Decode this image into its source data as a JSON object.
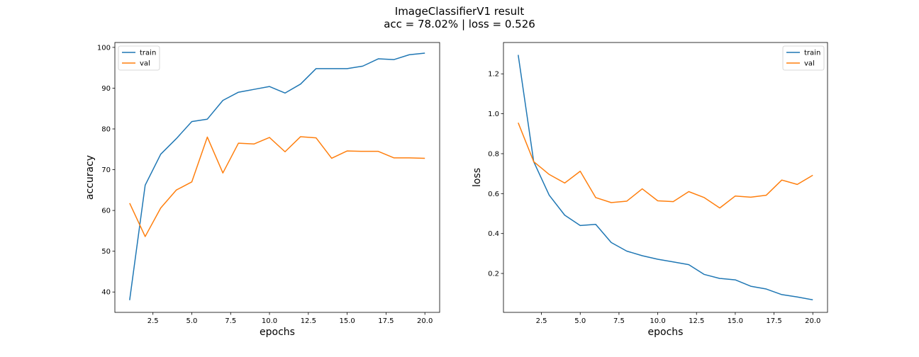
{
  "figure": {
    "title_line1": "ImageClassifierV1 result",
    "title_line2": "acc = 78.02% | loss = 0.526"
  },
  "colors": {
    "train": "#1f77b4",
    "val": "#ff7f0e",
    "axes": "#000000",
    "legend_border": "#cccccc"
  },
  "chart_data": [
    {
      "type": "line",
      "xlabel": "epochs",
      "ylabel": "accuracy",
      "xlim": [
        0.05,
        20.95
      ],
      "ylim": [
        35.0,
        101.2
      ],
      "xticks": [
        2.5,
        5.0,
        7.5,
        10.0,
        12.5,
        15.0,
        17.5,
        20.0
      ],
      "xtick_labels": [
        "2.5",
        "5.0",
        "7.5",
        "10.0",
        "12.5",
        "15.0",
        "17.5",
        "20.0"
      ],
      "yticks": [
        40,
        50,
        60,
        70,
        80,
        90,
        100
      ],
      "ytick_labels": [
        "40",
        "50",
        "60",
        "70",
        "80",
        "90",
        "100"
      ],
      "legend_position": "top-left",
      "grid": false,
      "x": [
        1,
        2,
        3,
        4,
        5,
        6,
        7,
        8,
        9,
        10,
        11,
        12,
        13,
        14,
        15,
        16,
        17,
        18,
        19,
        20
      ],
      "series": [
        {
          "name": "train",
          "values": [
            38.0,
            66.2,
            73.8,
            77.6,
            81.8,
            82.4,
            87.0,
            89.0,
            89.7,
            90.4,
            88.8,
            91.0,
            94.8,
            94.8,
            94.8,
            95.4,
            97.2,
            97.0,
            98.2,
            98.6
          ]
        },
        {
          "name": "val",
          "values": [
            61.8,
            53.6,
            60.6,
            65.0,
            67.0,
            78.0,
            69.2,
            76.5,
            76.3,
            77.9,
            74.4,
            78.1,
            77.8,
            72.8,
            74.6,
            74.5,
            74.5,
            72.9,
            72.9,
            72.8
          ]
        }
      ]
    },
    {
      "type": "line",
      "xlabel": "epochs",
      "ylabel": "loss",
      "xlim": [
        0.05,
        20.95
      ],
      "ylim": [
        0.005,
        1.357
      ],
      "xticks": [
        2.5,
        5.0,
        7.5,
        10.0,
        12.5,
        15.0,
        17.5,
        20.0
      ],
      "xtick_labels": [
        "2.5",
        "5.0",
        "7.5",
        "10.0",
        "12.5",
        "15.0",
        "17.5",
        "20.0"
      ],
      "yticks": [
        0.2,
        0.4,
        0.6,
        0.8,
        1.0,
        1.2
      ],
      "ytick_labels": [
        "0.2",
        "0.4",
        "0.6",
        "0.8",
        "1.0",
        "1.2"
      ],
      "legend_position": "top-right",
      "grid": false,
      "x": [
        1,
        2,
        3,
        4,
        5,
        6,
        7,
        8,
        9,
        10,
        11,
        12,
        13,
        14,
        15,
        16,
        17,
        18,
        19,
        20
      ],
      "series": [
        {
          "name": "train",
          "values": [
            1.295,
            0.76,
            0.592,
            0.492,
            0.44,
            0.446,
            0.355,
            0.312,
            0.289,
            0.271,
            0.258,
            0.244,
            0.195,
            0.175,
            0.168,
            0.136,
            0.122,
            0.094,
            0.082,
            0.068
          ]
        },
        {
          "name": "val",
          "values": [
            0.955,
            0.76,
            0.696,
            0.653,
            0.712,
            0.58,
            0.555,
            0.562,
            0.624,
            0.564,
            0.56,
            0.61,
            0.58,
            0.528,
            0.588,
            0.582,
            0.592,
            0.668,
            0.646,
            0.692
          ]
        }
      ]
    }
  ]
}
